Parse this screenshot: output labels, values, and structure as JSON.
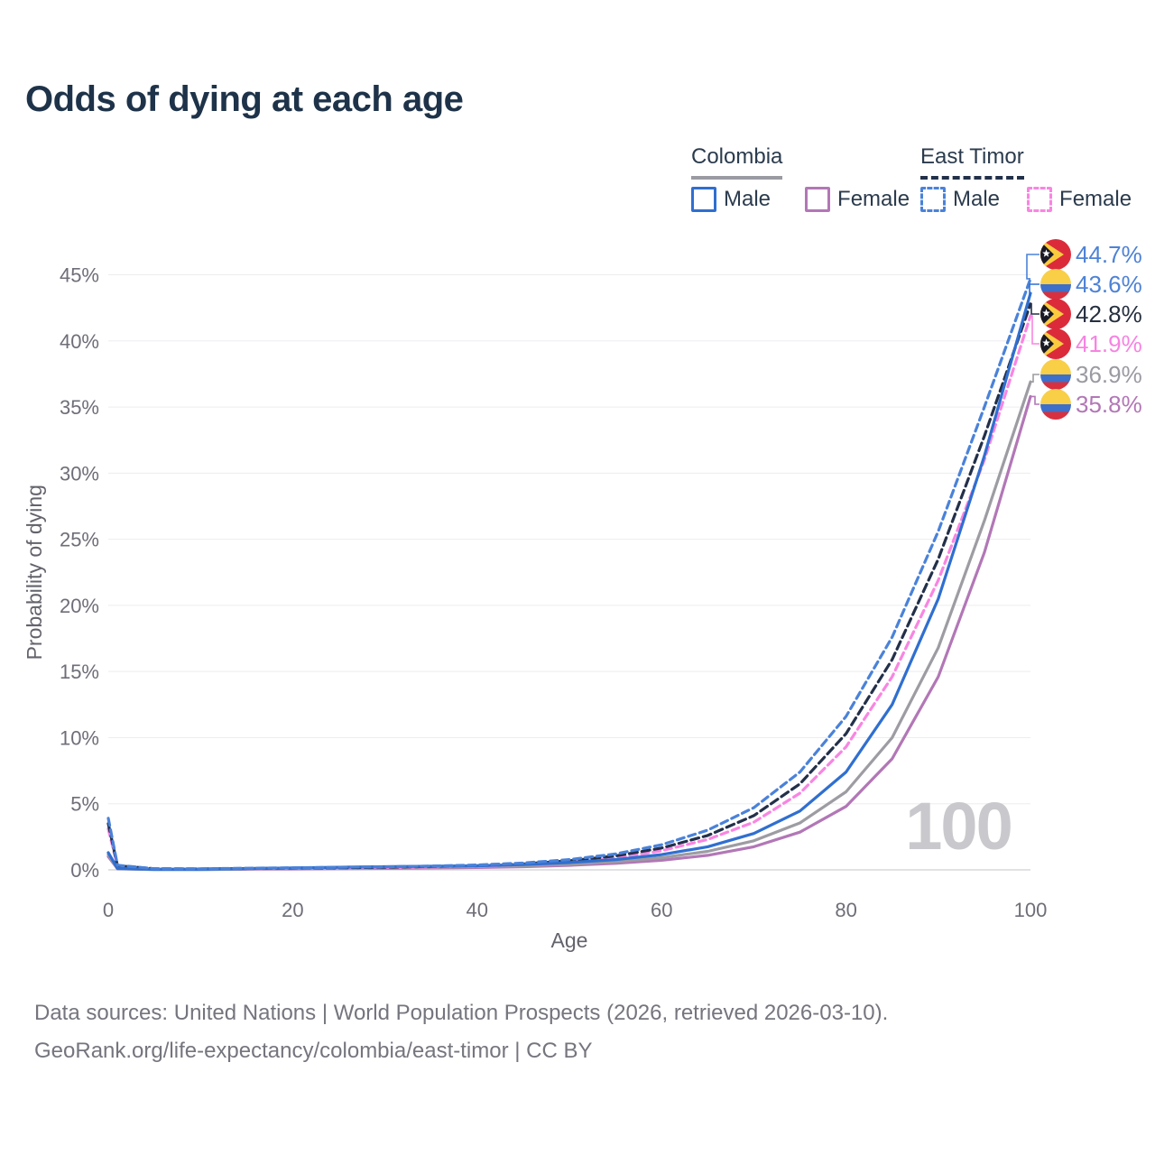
{
  "title": "Odds of dying at each age",
  "legend": {
    "groups": [
      {
        "name": "Colombia",
        "underline_style": "solid",
        "underline_color": "#9a9aa2",
        "items": [
          {
            "label": "Male",
            "color": "#2f6fd0",
            "dashed": false
          },
          {
            "label": "Female",
            "color": "#b277b6",
            "dashed": false
          }
        ]
      },
      {
        "name": "East Timor",
        "underline_style": "dashed",
        "underline_color": "#22304a",
        "items": [
          {
            "label": "Male",
            "color": "#4a82d9",
            "dashed": true
          },
          {
            "label": "Female",
            "color": "#f985e2",
            "dashed": true
          }
        ]
      }
    ]
  },
  "chart_data": {
    "type": "line",
    "title": "Odds of dying at each age",
    "xlabel": "Age",
    "ylabel": "Probability of dying",
    "xlim": [
      0,
      100
    ],
    "ylim": [
      0,
      47
    ],
    "x_ticks": [
      0,
      20,
      40,
      60,
      80,
      100
    ],
    "y_ticks": [
      "0%",
      "5%",
      "10%",
      "15%",
      "20%",
      "25%",
      "30%",
      "35%",
      "40%",
      "45%"
    ],
    "grid": "horizontal",
    "legend_position": "top-right",
    "watermark": "100",
    "x": [
      0,
      1,
      5,
      10,
      15,
      20,
      25,
      30,
      35,
      40,
      45,
      50,
      55,
      60,
      65,
      70,
      75,
      80,
      85,
      90,
      95,
      100
    ],
    "series": [
      {
        "name": "East Timor Male",
        "country": "East Timor",
        "sex": "Male",
        "color": "#4a82d9",
        "dash": "8 5",
        "values": [
          3.9,
          0.35,
          0.09,
          0.08,
          0.12,
          0.16,
          0.19,
          0.23,
          0.29,
          0.37,
          0.52,
          0.78,
          1.2,
          1.9,
          3.0,
          4.7,
          7.4,
          11.6,
          17.6,
          25.6,
          35.0,
          44.7
        ],
        "end_label": "44.7%",
        "end_label_color": "#4d82d6",
        "flag": "east-timor-flag-icon"
      },
      {
        "name": "Colombia Male",
        "country": "Colombia",
        "sex": "Male",
        "color": "#2f6fd0",
        "dash": null,
        "values": [
          1.3,
          0.1,
          0.04,
          0.04,
          0.09,
          0.15,
          0.2,
          0.24,
          0.27,
          0.31,
          0.4,
          0.55,
          0.78,
          1.15,
          1.75,
          2.75,
          4.45,
          7.4,
          12.5,
          20.5,
          31.3,
          43.6
        ],
        "end_label": "43.6%",
        "end_label_color": "#4d82d6",
        "flag": "colombia-flag-icon"
      },
      {
        "name": "East Timor",
        "country": "East Timor",
        "sex": "Both",
        "color": "#22304a",
        "dash": "9 5",
        "values": [
          3.5,
          0.31,
          0.08,
          0.07,
          0.1,
          0.13,
          0.16,
          0.2,
          0.25,
          0.32,
          0.45,
          0.68,
          1.05,
          1.65,
          2.6,
          4.1,
          6.5,
          10.3,
          15.9,
          23.5,
          32.8,
          42.8
        ],
        "end_label": "42.8%",
        "end_label_color": "#252f3f",
        "flag": "east-timor-flag-icon"
      },
      {
        "name": "East Timor Female",
        "country": "East Timor",
        "sex": "Female",
        "color": "#f985e2",
        "dash": "8 5",
        "values": [
          3.1,
          0.28,
          0.07,
          0.06,
          0.09,
          0.11,
          0.13,
          0.17,
          0.21,
          0.28,
          0.39,
          0.58,
          0.9,
          1.45,
          2.3,
          3.6,
          5.8,
          9.3,
          14.6,
          21.9,
          31.0,
          41.9
        ],
        "end_label": "41.9%",
        "end_label_color": "#f783e2",
        "flag": "east-timor-flag-icon"
      },
      {
        "name": "Colombia",
        "country": "Colombia",
        "sex": "Both",
        "color": "#9c9ca2",
        "dash": null,
        "values": [
          1.15,
          0.09,
          0.03,
          0.03,
          0.07,
          0.11,
          0.14,
          0.17,
          0.2,
          0.24,
          0.31,
          0.44,
          0.63,
          0.92,
          1.4,
          2.2,
          3.55,
          5.9,
          10.0,
          16.8,
          26.4,
          36.9
        ],
        "end_label": "36.9%",
        "end_label_color": "#9a9aa2",
        "flag": "colombia-flag-icon"
      },
      {
        "name": "Colombia Female",
        "country": "Colombia",
        "sex": "Female",
        "color": "#b277b6",
        "dash": null,
        "values": [
          1.0,
          0.08,
          0.03,
          0.03,
          0.05,
          0.07,
          0.09,
          0.11,
          0.14,
          0.18,
          0.24,
          0.34,
          0.49,
          0.72,
          1.1,
          1.75,
          2.85,
          4.8,
          8.4,
          14.6,
          24.0,
          35.8
        ],
        "end_label": "35.8%",
        "end_label_color": "#b277b6",
        "flag": "colombia-flag-icon"
      }
    ],
    "flag_colors": {
      "colombia": {
        "yellow": "#F8CF47",
        "blue": "#3E6FC9",
        "red": "#D8303F"
      },
      "east_timor": {
        "red": "#DB2B3B",
        "yellow": "#FBCB3F",
        "black": "#1A1A26",
        "star": "#ffffff"
      }
    }
  },
  "footer": {
    "line1": "Data sources: United Nations | World Population Prospects (2026, retrieved 2026-03-10).",
    "line2": "GeoRank.org/life-expectancy/colombia/east-timor | CC BY"
  }
}
